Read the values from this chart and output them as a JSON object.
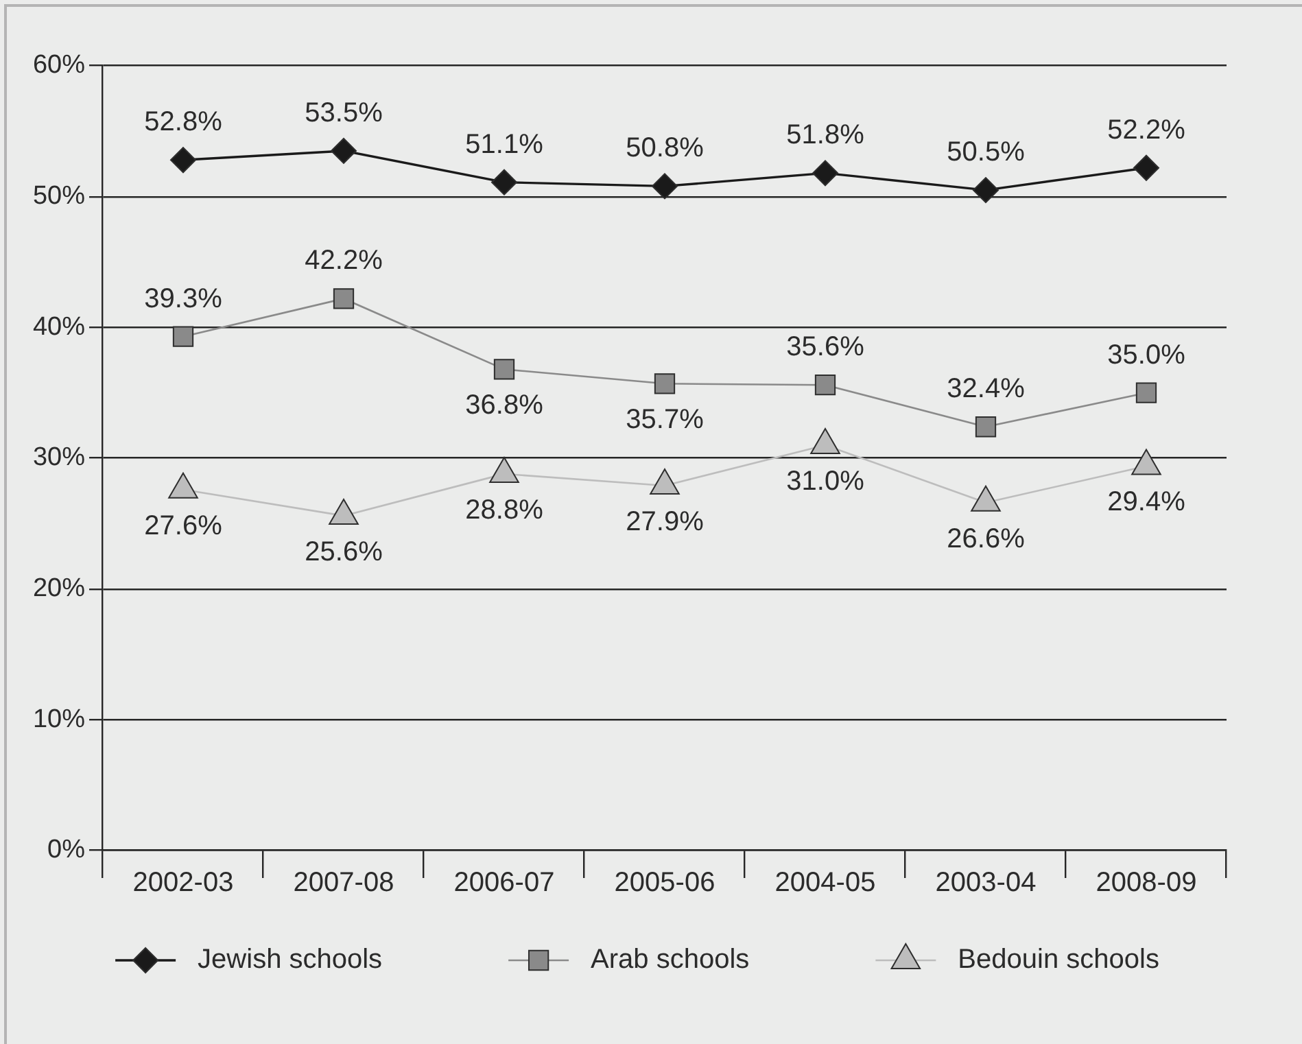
{
  "chart_data": {
    "type": "line",
    "categories": [
      "2002-03",
      "2007-08",
      "2006-07",
      "2005-06",
      "2004-05",
      "2003-04",
      "2008-09"
    ],
    "series": [
      {
        "name": "Jewish schools",
        "color": "#1a1a1a",
        "marker": "diamond",
        "values": [
          52.8,
          53.5,
          51.1,
          50.8,
          51.8,
          50.5,
          52.2
        ],
        "value_labels": [
          "52.8%",
          "53.5%",
          "51.1%",
          "50.8%",
          "51.8%",
          "50.5%",
          "52.2%"
        ]
      },
      {
        "name": "Arab schools",
        "color": "#8a8a8a",
        "marker": "square",
        "values": [
          39.3,
          42.2,
          36.8,
          35.7,
          35.6,
          32.4,
          35.0
        ],
        "value_labels": [
          "39.3%",
          "42.2%",
          "36.8%",
          "35.7%",
          "35.6%",
          "32.4%",
          "35.0%"
        ]
      },
      {
        "name": "Bedouin schools",
        "color": "#bdbdbd",
        "marker": "triangle",
        "values": [
          27.6,
          25.6,
          28.8,
          27.9,
          31.0,
          26.6,
          29.4
        ],
        "value_labels": [
          "27.6%",
          "25.6%",
          "28.8%",
          "27.9%",
          "31.0%",
          "26.6%",
          "29.4%"
        ]
      }
    ],
    "ylim": [
      0,
      60
    ],
    "yticks": [
      {
        "value": 0,
        "label": "0%"
      },
      {
        "value": 10,
        "label": "10%"
      },
      {
        "value": 20,
        "label": "20%"
      },
      {
        "value": 30,
        "label": "30%"
      },
      {
        "value": 40,
        "label": "40%"
      },
      {
        "value": 50,
        "label": "50%"
      },
      {
        "value": 60,
        "label": "60%"
      }
    ],
    "grid": "y",
    "legend": "bottom"
  }
}
